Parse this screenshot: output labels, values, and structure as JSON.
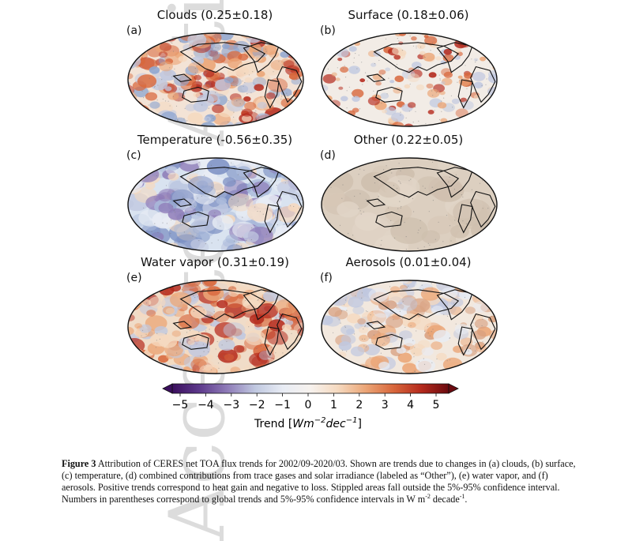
{
  "watermark": "Accepted Article",
  "panels": [
    {
      "letter": "(a)",
      "title": "Clouds (0.25±0.18)",
      "style": "clouds"
    },
    {
      "letter": "(b)",
      "title": "Surface (0.18±0.06)",
      "style": "surface"
    },
    {
      "letter": "(c)",
      "title": "Temperature (-0.56±0.35)",
      "style": "temperature"
    },
    {
      "letter": "(d)",
      "title": "Other (0.22±0.05)",
      "style": "other"
    },
    {
      "letter": "(e)",
      "title": "Water vapor (0.31±0.19)",
      "style": "vapor"
    },
    {
      "letter": "(f)",
      "title": "Aerosols (0.01±0.04)",
      "style": "aerosols"
    }
  ],
  "colorbar": {
    "ticks": [
      "−5",
      "−4",
      "−3",
      "−2",
      "−1",
      "0",
      "1",
      "2",
      "3",
      "4",
      "5"
    ],
    "label_main": "Trend [",
    "label_unit": "Wm",
    "label_exp1": "−2",
    "label_unit2": "dec",
    "label_exp2": "−1",
    "label_end": "]",
    "colors": [
      "#3b0f5e",
      "#5e3a8c",
      "#8f7cb8",
      "#c0c8e0",
      "#e8ecf4",
      "#f7f2ee",
      "#f5d9bf",
      "#eba576",
      "#d8673c",
      "#b52a1d",
      "#6b0a0f"
    ]
  },
  "caption": {
    "label": "Figure 3",
    "text1": " Attribution of CERES net TOA flux trends for 2002/09-2020/03. Shown are trends due to changes in (a) clouds, (b) surface, (c) temperature, (d) combined contributions from trace gases and solar irradiance (labeled as “Other”), (e) water vapor, and (f) aerosols. Positive trends correspond to heat gain and negative to loss. Stippled areas fall outside the 5%-95% confidence interval. Numbers in parentheses correspond to global trends and 5%-95% confidence intervals in W m",
    "sup1": "-2",
    "text2": " decade",
    "sup2": "-1",
    "text3": "."
  }
}
